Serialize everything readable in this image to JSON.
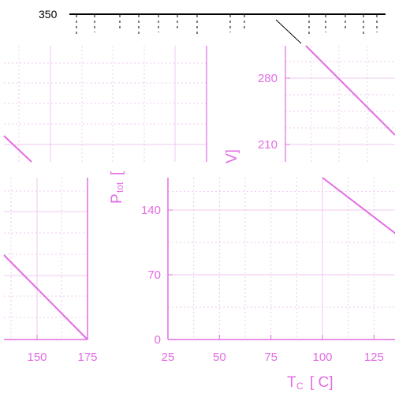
{
  "colors": {
    "accent": "#e36de3",
    "grid": "#f0c8f0",
    "curve": "#e36de3",
    "top_strip": "#000000",
    "background": "#ffffff"
  },
  "top_strip": {
    "label": "350"
  },
  "chart_data": [
    {
      "type": "line",
      "panel": "top-left",
      "title": "",
      "xlabel": "",
      "ylabel": "",
      "grid": true,
      "series": [
        {
          "x": [
            0,
            10
          ],
          "y": [
            0,
            1
          ]
        }
      ]
    },
    {
      "type": "line",
      "panel": "top-right",
      "title": "",
      "xlabel": "",
      "ylabel": "V]",
      "y_ticks": [
        280,
        210
      ],
      "grid": true,
      "series": [
        {
          "x": [
            0,
            10
          ],
          "y": [
            315,
            200
          ]
        }
      ]
    },
    {
      "type": "line",
      "panel": "bottom-left",
      "title": "",
      "xlabel": "",
      "ylabel": "",
      "x_ticks": [
        150,
        175
      ],
      "xlim": [
        135,
        175
      ],
      "grid": true,
      "series": [
        {
          "x": [
            135,
            175
          ],
          "y": [
            80,
            0
          ]
        }
      ]
    },
    {
      "type": "line",
      "panel": "bottom-right",
      "title": "",
      "xlabel_main": "T",
      "xlabel_sub": "C",
      "xlabel_unit": "[ C]",
      "ylabel_main": "P",
      "ylabel_sub": "tot",
      "ylabel_unit": "[",
      "x_ticks": [
        25,
        50,
        75,
        100,
        125
      ],
      "y_ticks": [
        0,
        70,
        140
      ],
      "xlim": [
        25,
        137
      ],
      "ylim": [
        0,
        175
      ],
      "grid": true,
      "series": [
        {
          "x": [
            100,
            137
          ],
          "y": [
            175,
            112
          ]
        }
      ]
    }
  ]
}
